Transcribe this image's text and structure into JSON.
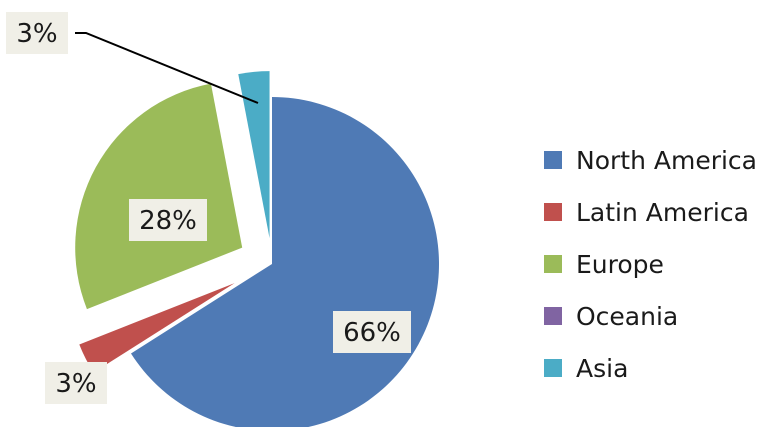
{
  "chart_data": {
    "type": "pie",
    "title": "",
    "exploded": true,
    "legend_position": "right",
    "slices": [
      {
        "name": "North America",
        "value": 66,
        "label": "66%",
        "color": "#4f7ab5"
      },
      {
        "name": "Latin America",
        "value": 3,
        "label": "3%",
        "color": "#c0504d"
      },
      {
        "name": "Europe",
        "value": 28,
        "label": "28%",
        "color": "#9bbb59"
      },
      {
        "name": "Oceania",
        "value": 0,
        "label": "",
        "color": "#8064a2"
      },
      {
        "name": "Asia",
        "value": 3,
        "label": "3%",
        "color": "#4bacc6"
      }
    ]
  }
}
